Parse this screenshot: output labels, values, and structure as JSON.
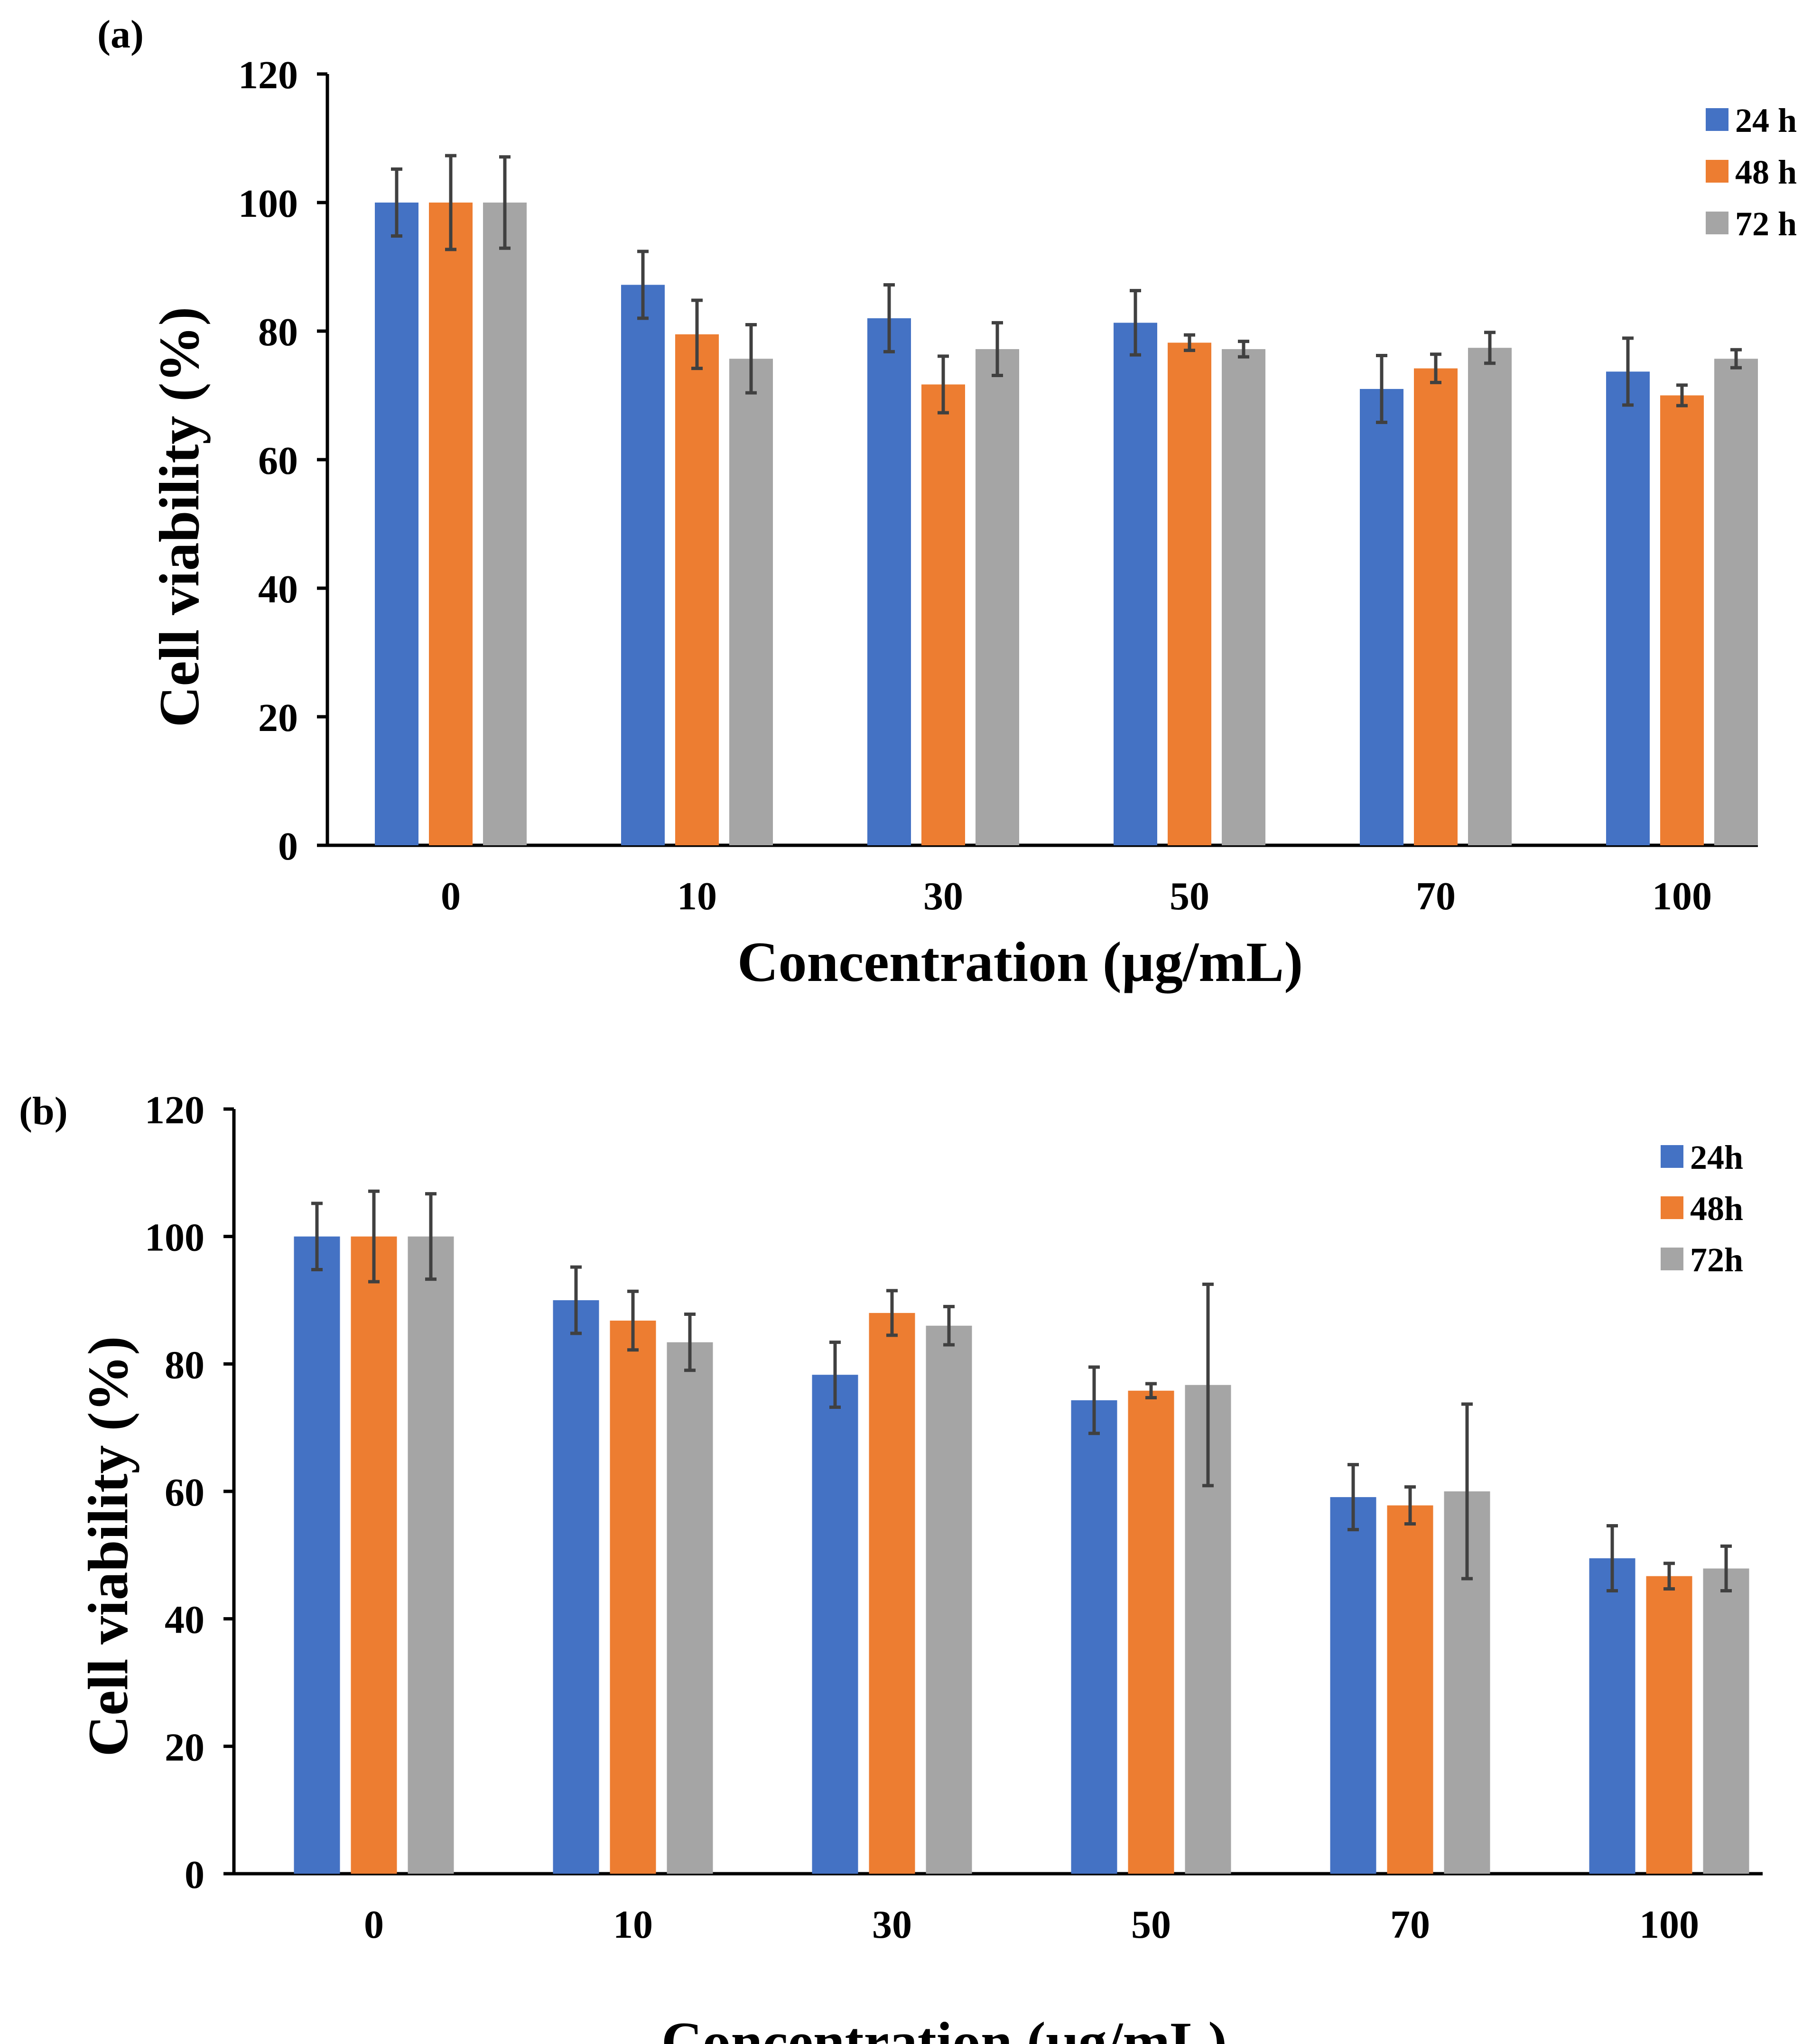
{
  "figure": {
    "colors": {
      "24h": "#4472C4",
      "48h": "#ED7D31",
      "72h": "#A5A5A5",
      "error_bar": "#404040",
      "axis": "#000000"
    }
  },
  "chart_data": [
    {
      "type": "bar",
      "panel_label": "(a)",
      "title": "",
      "xlabel": "Concentration (µg/mL)",
      "ylabel": "Cell viability (%)",
      "ylim": [
        0,
        120
      ],
      "yticks": [
        "0",
        "20",
        "40",
        "60",
        "80",
        "100",
        "120"
      ],
      "categories": [
        "0",
        "10",
        "30",
        "50",
        "70",
        "100"
      ],
      "legend_position": "top-right",
      "series": [
        {
          "name": "24 h",
          "color": "#4472C4",
          "values": [
            100,
            87.2,
            82,
            81.3,
            71,
            73.7
          ],
          "errors": [
            5.2,
            5.2,
            5.2,
            5.0,
            5.2,
            5.2
          ]
        },
        {
          "name": "48 h",
          "color": "#ED7D31",
          "values": [
            100,
            79.5,
            71.7,
            78.2,
            74.2,
            70
          ],
          "errors": [
            7.3,
            5.3,
            4.4,
            1.2,
            2.2,
            1.6
          ]
        },
        {
          "name": "72 h",
          "color": "#A5A5A5",
          "values": [
            100,
            75.7,
            77.2,
            77.2,
            77.4,
            75.7
          ],
          "errors": [
            7.1,
            5.3,
            4.1,
            1.2,
            2.4,
            1.4
          ]
        }
      ]
    },
    {
      "type": "bar",
      "panel_label": "(b)",
      "title": "",
      "xlabel": "Concentration (µg/mL)",
      "ylabel": "Cell viability (%)",
      "ylim": [
        0,
        120
      ],
      "yticks": [
        "0",
        "20",
        "40",
        "60",
        "80",
        "100",
        "120"
      ],
      "categories": [
        "0",
        "10",
        "30",
        "50",
        "70",
        "100"
      ],
      "legend_position": "top-right",
      "series": [
        {
          "name": "24h",
          "color": "#4472C4",
          "values": [
            100,
            90,
            78.3,
            74.3,
            59.1,
            49.5
          ],
          "errors": [
            5.2,
            5.2,
            5.1,
            5.2,
            5.1,
            5.1
          ]
        },
        {
          "name": "48h",
          "color": "#ED7D31",
          "values": [
            100,
            86.8,
            88,
            75.8,
            57.8,
            46.7
          ],
          "errors": [
            7.1,
            4.6,
            3.5,
            1.1,
            2.9,
            2.0
          ]
        },
        {
          "name": "72h",
          "color": "#A5A5A5",
          "values": [
            100,
            83.4,
            86,
            76.7,
            60,
            47.9
          ],
          "errors": [
            6.7,
            4.4,
            3.0,
            15.8,
            13.7,
            3.5
          ]
        }
      ]
    }
  ]
}
